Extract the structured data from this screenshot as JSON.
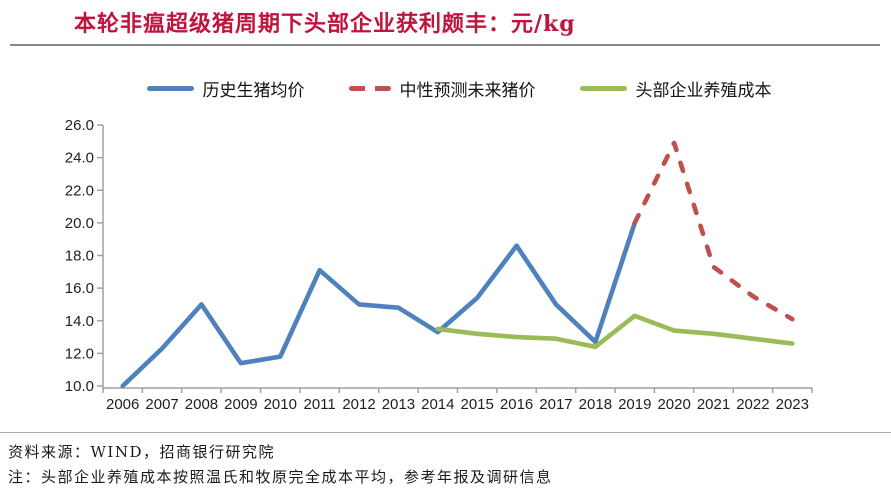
{
  "title": {
    "text": "本轮非瘟超级猪周期下头部企业获利颇丰：元/kg",
    "color": "#C0143C"
  },
  "legend": [
    {
      "label": "历史生猪均价",
      "color": "#4F81BD",
      "style": "solid"
    },
    {
      "label": "中性预测未来猪价",
      "color": "#C0504D",
      "style": "dashed"
    },
    {
      "label": "头部企业养殖成本",
      "color": "#9BBB59",
      "style": "solid"
    }
  ],
  "footer": {
    "source": "资料来源：WIND，招商银行研究院",
    "note": "注：头部企业养殖成本按照温氏和牧原完全成本平均，参考年报及调研信息"
  },
  "chart_data": {
    "type": "line",
    "title": "本轮非瘟超级猪周期下头部企业获利颇丰：元/kg",
    "unit": "元/kg",
    "xlabel": "",
    "ylabel": "",
    "grid": false,
    "legend_position": "top",
    "x_years": [
      2006,
      2007,
      2008,
      2009,
      2010,
      2011,
      2012,
      2013,
      2014,
      2015,
      2016,
      2017,
      2018,
      2019,
      2020,
      2021,
      2022,
      2023
    ],
    "ylim": [
      10,
      26
    ],
    "ytick_step": 2,
    "series": [
      {
        "key": "historical-hog-price",
        "name": "历史生猪均价",
        "color": "#4F81BD",
        "dashed": false,
        "years": [
          2006,
          2007,
          2008,
          2009,
          2010,
          2011,
          2012,
          2013,
          2014,
          2015,
          2016,
          2017,
          2018,
          2019
        ],
        "values": [
          10.0,
          12.3,
          15.0,
          11.4,
          11.8,
          17.1,
          15.0,
          14.8,
          13.3,
          15.4,
          18.6,
          15.0,
          12.7,
          20.0
        ]
      },
      {
        "key": "neutral-forecast-price",
        "name": "中性预测未来猪价",
        "color": "#C0504D",
        "dashed": true,
        "years": [
          2019,
          2020,
          2021,
          2022,
          2023
        ],
        "values": [
          20.0,
          24.9,
          17.3,
          15.5,
          14.1
        ]
      },
      {
        "key": "leading-firm-breeding-cost",
        "name": "头部企业养殖成本",
        "color": "#9BBB59",
        "dashed": false,
        "years": [
          2014,
          2015,
          2016,
          2017,
          2018,
          2019,
          2020,
          2021,
          2022,
          2023
        ],
        "values": [
          13.5,
          13.2,
          13.0,
          12.9,
          12.4,
          14.3,
          13.4,
          13.2,
          12.9,
          12.6
        ]
      }
    ]
  }
}
